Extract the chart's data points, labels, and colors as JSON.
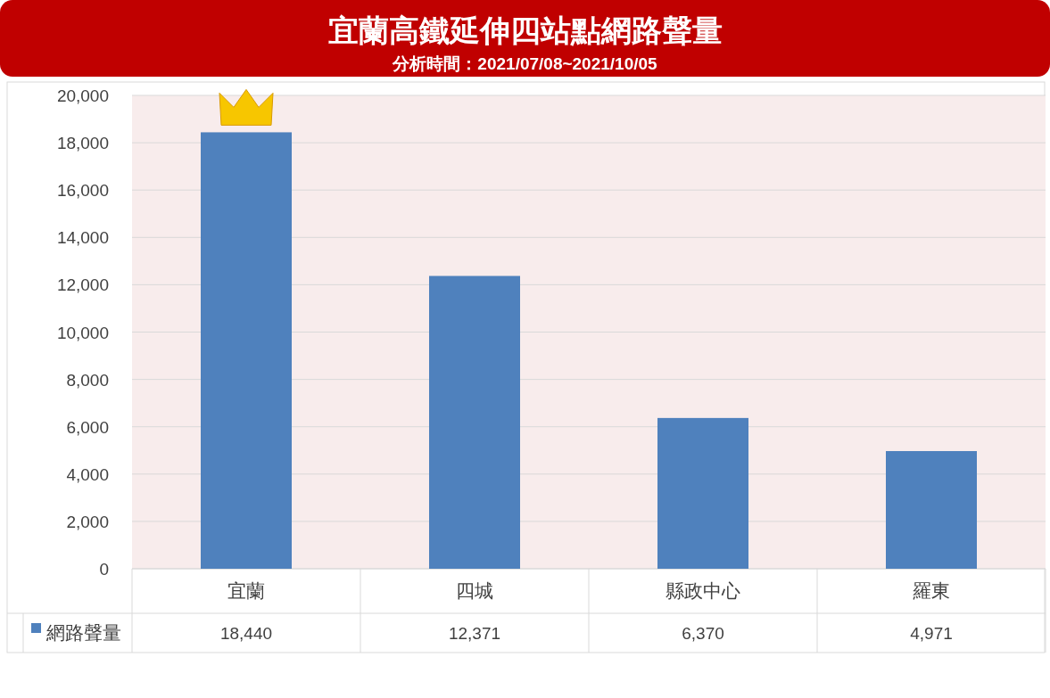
{
  "chart_data": {
    "type": "bar",
    "title": "宜蘭高鐵延伸四站點網路聲量",
    "subtitle": "分析時間：2021/07/08~2021/10/05",
    "categories": [
      "宜蘭",
      "四城",
      "縣政中心",
      "羅東"
    ],
    "series": [
      {
        "name": "網路聲量",
        "color": "#4f81bd",
        "values": [
          18440,
          12371,
          6370,
          4971
        ],
        "value_labels": [
          "18,440",
          "12,371",
          "6,370",
          "4,971"
        ]
      }
    ],
    "ylim": [
      0,
      20000
    ],
    "yticks": [
      0,
      {
        "value": 2000,
        "label": "2,000"
      },
      {
        "value": 4000,
        "label": "4,000"
      },
      {
        "value": 6000,
        "label": "6,000"
      },
      {
        "value": 8000,
        "label": "8,000"
      },
      {
        "value": 10000,
        "label": "10,000"
      },
      {
        "value": 12000,
        "label": "12,000"
      },
      {
        "value": 14000,
        "label": "14,000"
      },
      {
        "value": 16000,
        "label": "16,000"
      },
      {
        "value": 18000,
        "label": "18,000"
      },
      {
        "value": 20000,
        "label": "20,000"
      }
    ],
    "grid": "y",
    "legend": "bottom"
  }
}
